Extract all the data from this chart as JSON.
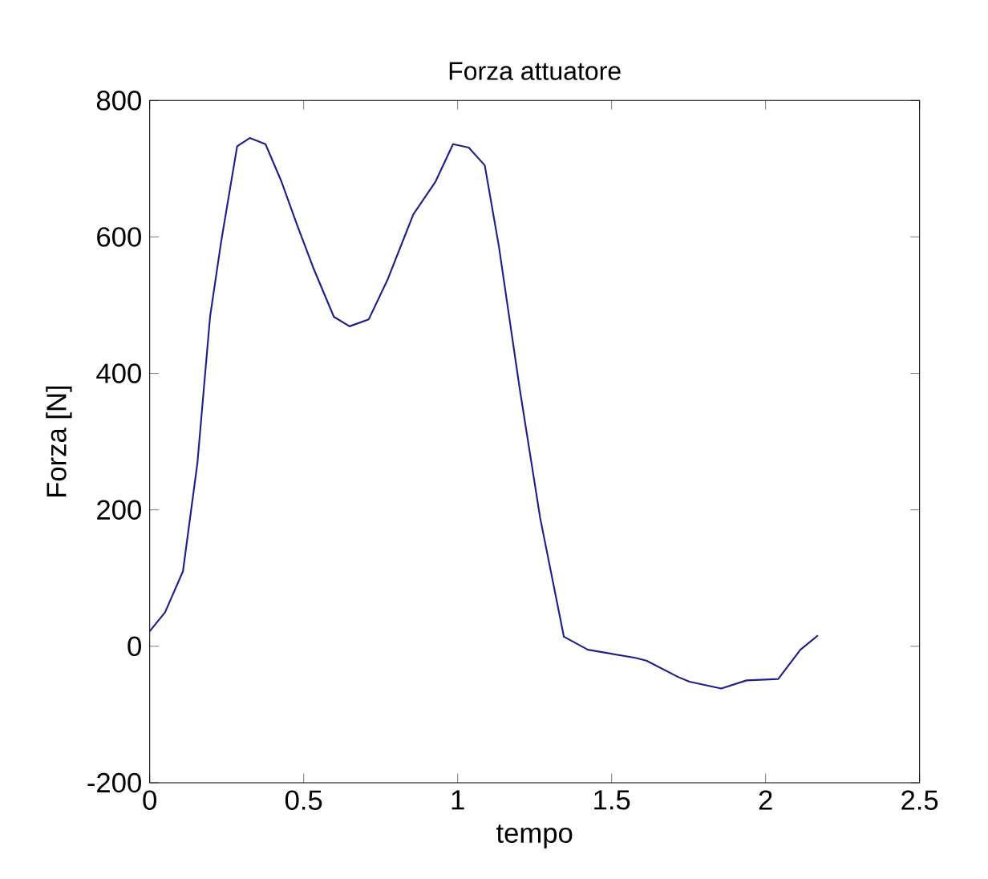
{
  "chart_data": {
    "type": "line",
    "title": "Forza attuatore",
    "xlabel": "tempo",
    "ylabel": "Forza [N]",
    "x": [
      0,
      0.05,
      0.108,
      0.155,
      0.196,
      0.232,
      0.284,
      0.325,
      0.376,
      0.428,
      0.479,
      0.531,
      0.598,
      0.649,
      0.711,
      0.773,
      0.856,
      0.928,
      0.985,
      1.036,
      1.088,
      1.134,
      1.201,
      1.268,
      1.345,
      1.423,
      1.577,
      1.613,
      1.716,
      1.753,
      1.856,
      1.938,
      2.041,
      2.113,
      2.17
    ],
    "series": [
      {
        "color": "#1f1f8c",
        "values": [
          22,
          50,
          110,
          269,
          483,
          593,
          733,
          745,
          736,
          681,
          617,
          555,
          483,
          469,
          479,
          538,
          633,
          681,
          736,
          731,
          705,
          586,
          379,
          188,
          14,
          -5,
          -17,
          -21,
          -45,
          -52,
          -62,
          -50,
          -48,
          -5,
          16
        ]
      }
    ],
    "xlim": [
      0,
      2.5
    ],
    "ylim": [
      -200,
      800
    ],
    "xticks": [
      0,
      0.5,
      1,
      1.5,
      2,
      2.5
    ],
    "yticks": [
      -200,
      0,
      200,
      400,
      600,
      800
    ],
    "marker": "none",
    "line_style": "solid"
  }
}
